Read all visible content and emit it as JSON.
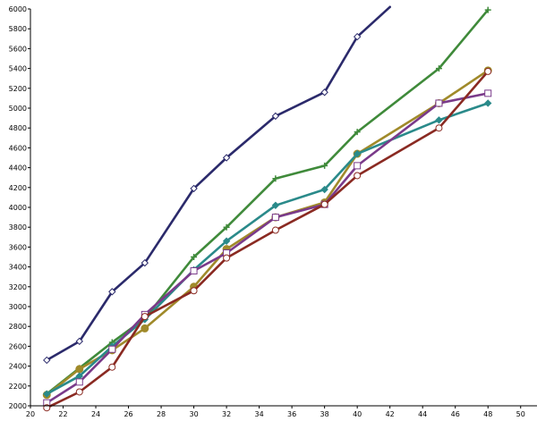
{
  "chart_data": {
    "type": "line",
    "title": "",
    "xlabel": "",
    "ylabel": "",
    "xlim": [
      20,
      51
    ],
    "ylim": [
      2000,
      6000
    ],
    "x_ticks": [
      20,
      22,
      24,
      26,
      28,
      30,
      32,
      34,
      36,
      38,
      40,
      42,
      44,
      46,
      48,
      50
    ],
    "y_ticks": [
      2000,
      2200,
      2400,
      2600,
      2800,
      3000,
      3200,
      3400,
      3600,
      3800,
      4000,
      4200,
      4400,
      4600,
      4800,
      5000,
      5200,
      5400,
      5600,
      5800,
      6000
    ],
    "grid": false,
    "legend": "none",
    "series": [
      {
        "color": "#2b2a6b",
        "marker": "diamond-open",
        "x": [
          21,
          23,
          25,
          27,
          30,
          32,
          35,
          38,
          40,
          42
        ],
        "y": [
          2460,
          2650,
          3150,
          3440,
          4190,
          4500,
          4920,
          5160,
          5720,
          6020
        ]
      },
      {
        "color": "#3f8a3a",
        "marker": "plus",
        "x": [
          21,
          23,
          25,
          27,
          30,
          32,
          35,
          38,
          40,
          45,
          48
        ],
        "y": [
          2120,
          2380,
          2640,
          2880,
          3500,
          3800,
          4290,
          4420,
          4760,
          5400,
          5990
        ]
      },
      {
        "color": "#a08a2a",
        "marker": "circle-filled",
        "x": [
          21,
          23,
          25,
          27,
          30,
          32,
          35,
          38,
          40,
          45,
          48
        ],
        "y": [
          2110,
          2370,
          2560,
          2780,
          3200,
          3580,
          3900,
          4050,
          4540,
          5050,
          5380
        ]
      },
      {
        "color": "#2a8a8a",
        "marker": "diamond-filled",
        "x": [
          21,
          23,
          25,
          27,
          30,
          32,
          35,
          38,
          40,
          45,
          48
        ],
        "y": [
          2120,
          2300,
          2600,
          2870,
          3370,
          3660,
          4020,
          4180,
          4540,
          4880,
          5050
        ]
      },
      {
        "color": "#7a3a8a",
        "marker": "square-open",
        "x": [
          21,
          23,
          25,
          27,
          30,
          32,
          35,
          38,
          40,
          45,
          48
        ],
        "y": [
          2030,
          2240,
          2570,
          2920,
          3360,
          3540,
          3900,
          4030,
          4420,
          5050,
          5150
        ]
      },
      {
        "color": "#8a2a22",
        "marker": "circle-open",
        "x": [
          21,
          23,
          25,
          27,
          30,
          32,
          35,
          38,
          40,
          45,
          48
        ],
        "y": [
          1980,
          2140,
          2390,
          2900,
          3160,
          3490,
          3770,
          4030,
          4320,
          4800,
          5370
        ]
      }
    ]
  }
}
